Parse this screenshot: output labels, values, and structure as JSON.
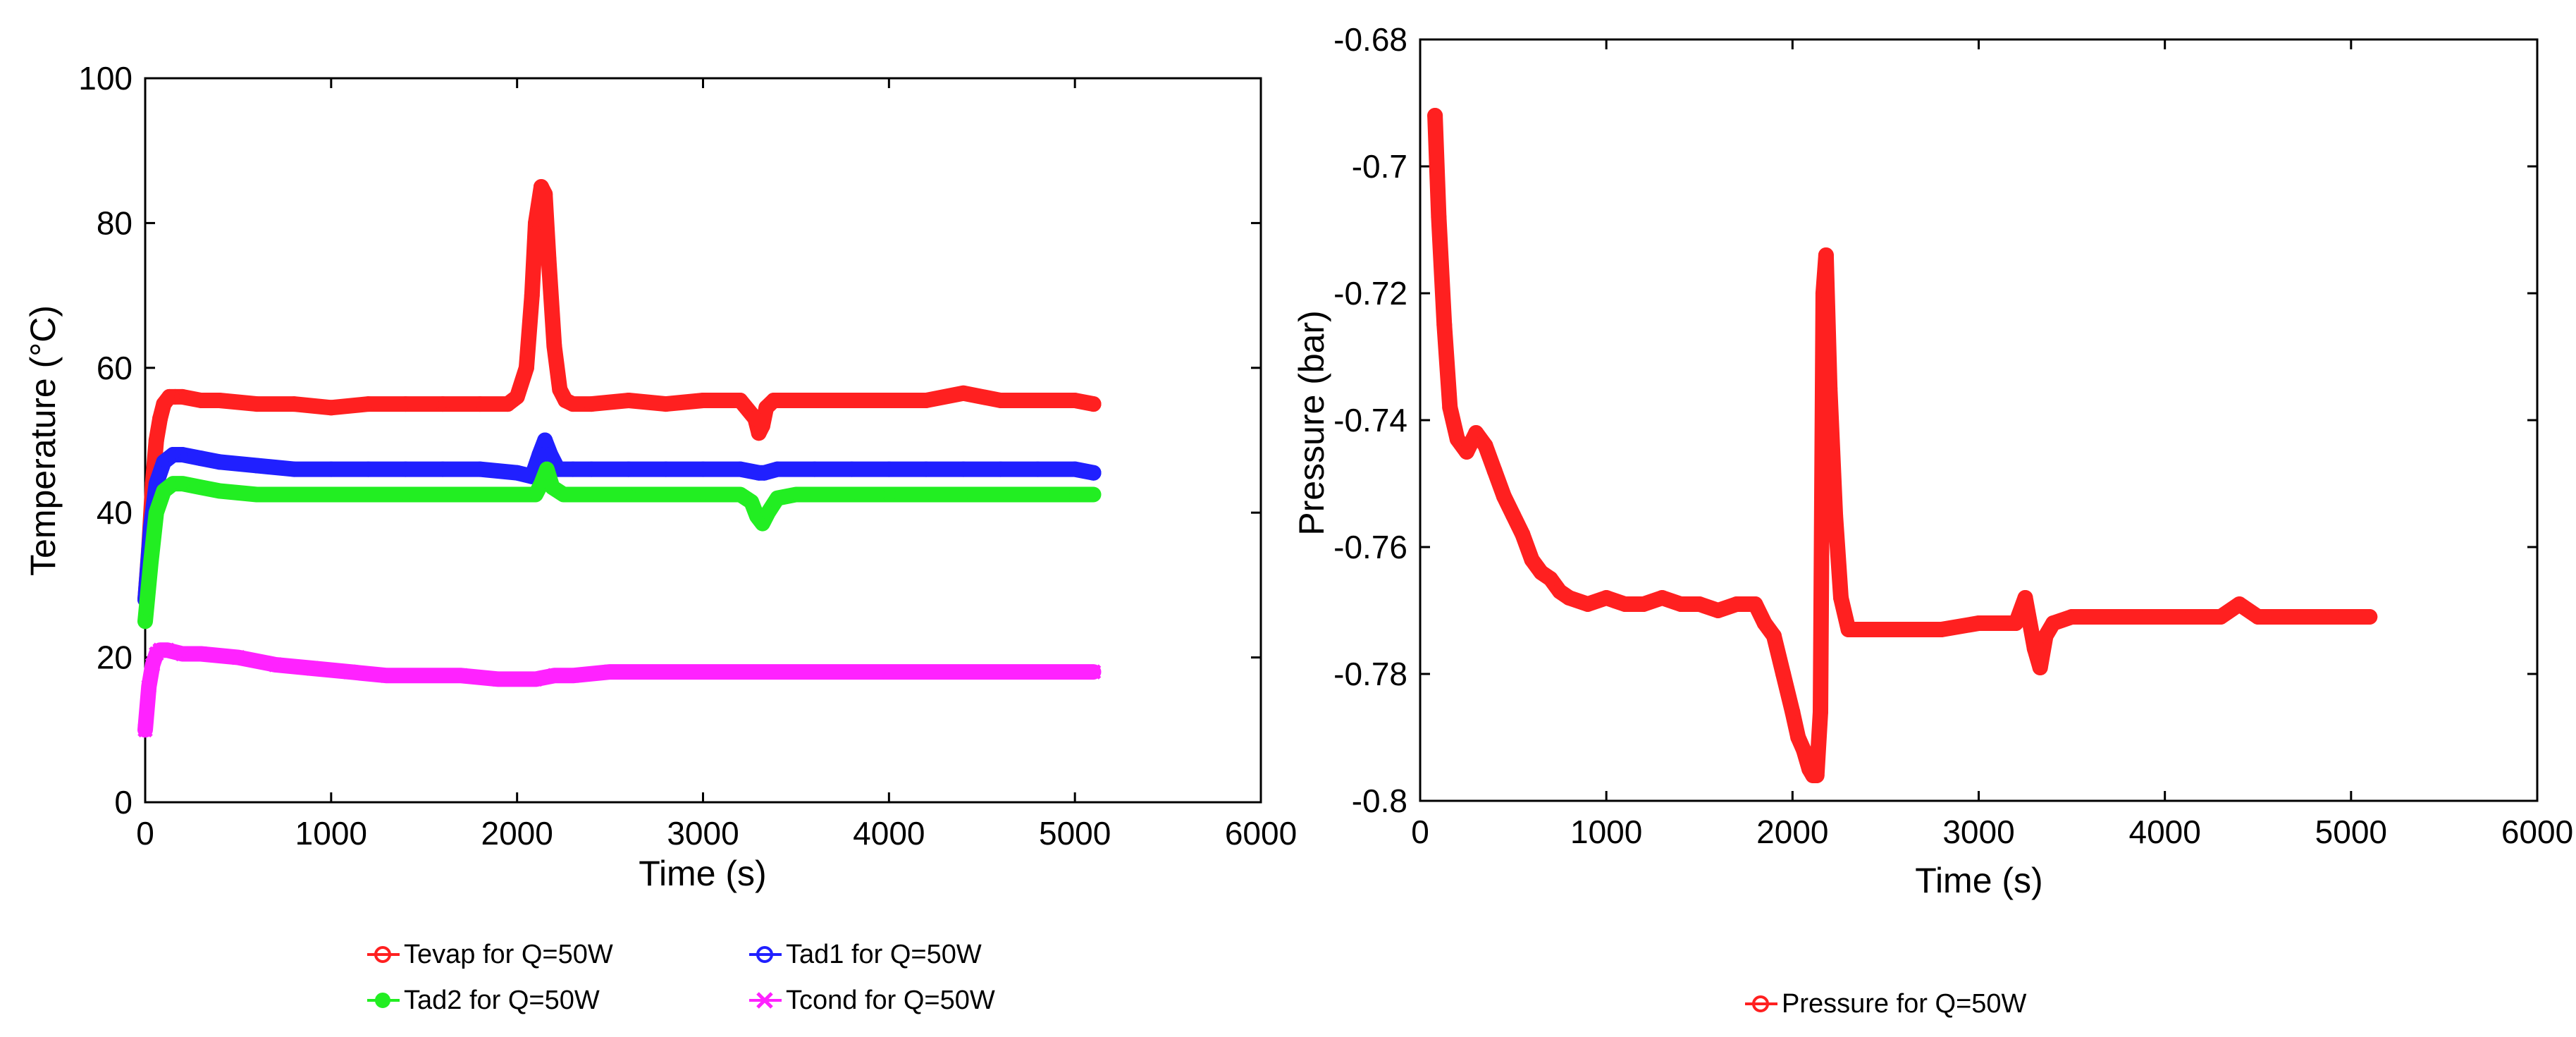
{
  "chart_data": [
    {
      "type": "line",
      "title": "",
      "xlabel": "Time (s)",
      "ylabel": "Temperature (°C)",
      "xlim": [
        0,
        6000
      ],
      "ylim": [
        0,
        100
      ],
      "xticks": [
        "0",
        "1000",
        "2000",
        "3000",
        "4000",
        "5000",
        "6000"
      ],
      "yticks": [
        "0",
        "20",
        "40",
        "60",
        "80",
        "100"
      ],
      "grid": false,
      "legend_position": "bottom",
      "series": [
        {
          "name": "Tevap for Q=50W",
          "color": "#ff2020",
          "marker": "circle",
          "x": [
            0,
            20,
            40,
            60,
            80,
            100,
            130,
            160,
            200,
            300,
            400,
            600,
            800,
            1000,
            1200,
            1400,
            1600,
            1800,
            1950,
            2000,
            2050,
            2080,
            2100,
            2130,
            2150,
            2170,
            2200,
            2230,
            2260,
            2300,
            2400,
            2600,
            2800,
            3000,
            3200,
            3280,
            3300,
            3320,
            3340,
            3380,
            3450,
            3600,
            3800,
            4000,
            4200,
            4400,
            4600,
            4800,
            5000,
            5100
          ],
          "values": [
            28,
            35,
            44,
            50,
            53,
            55,
            56,
            56,
            56,
            55.5,
            55.5,
            55,
            55,
            54.5,
            55,
            55,
            55,
            55,
            55,
            56,
            60,
            70,
            80,
            85,
            84,
            75,
            63,
            57,
            55.5,
            55,
            55,
            55.5,
            55,
            55.5,
            55.5,
            53,
            51,
            52,
            54.5,
            55.5,
            55.5,
            55.5,
            55.5,
            55.5,
            55.5,
            56.5,
            55.5,
            55.5,
            55.5,
            55
          ]
        },
        {
          "name": "Tad1 for Q=50W",
          "color": "#2020ff",
          "marker": "circle",
          "x": [
            0,
            30,
            60,
            100,
            150,
            200,
            300,
            400,
            600,
            800,
            1000,
            1200,
            1400,
            1600,
            1800,
            2000,
            2080,
            2120,
            2150,
            2180,
            2220,
            2300,
            2400,
            2600,
            2800,
            3000,
            3200,
            3300,
            3330,
            3400,
            3600,
            3800,
            4000,
            4200,
            4400,
            4600,
            4800,
            5000,
            5100
          ],
          "values": [
            28,
            38,
            44,
            47,
            48,
            48,
            47.5,
            47,
            46.5,
            46,
            46,
            46,
            46,
            46,
            46,
            45.5,
            45,
            48,
            50,
            48,
            46,
            46,
            46,
            46,
            46,
            46,
            46,
            45.5,
            45.5,
            46,
            46,
            46,
            46,
            46,
            46,
            46,
            46,
            46,
            45.5
          ]
        },
        {
          "name": "Tad2 for Q=50W",
          "color": "#22ee22",
          "marker": "filled-circle",
          "x": [
            0,
            30,
            60,
            100,
            150,
            200,
            300,
            400,
            600,
            800,
            1000,
            1200,
            1400,
            1600,
            1800,
            2000,
            2100,
            2130,
            2160,
            2190,
            2250,
            2400,
            2600,
            2800,
            3000,
            3200,
            3260,
            3290,
            3320,
            3350,
            3400,
            3500,
            3600,
            3800,
            4000,
            4200,
            4400,
            4600,
            4800,
            5000,
            5100
          ],
          "values": [
            25,
            33,
            40,
            43,
            44,
            44,
            43.5,
            43,
            42.5,
            42.5,
            42.5,
            42.5,
            42.5,
            42.5,
            42.5,
            42.5,
            42.5,
            44,
            46,
            43.5,
            42.5,
            42.5,
            42.5,
            42.5,
            42.5,
            42.5,
            41.5,
            39.5,
            38.5,
            40,
            42,
            42.5,
            42.5,
            42.5,
            42.5,
            42.5,
            42.5,
            42.5,
            42.5,
            42.5,
            42.5
          ]
        },
        {
          "name": "Tcond for Q=50W",
          "color": "#ff22ff",
          "marker": "x",
          "x": [
            0,
            20,
            40,
            60,
            80,
            120,
            200,
            300,
            500,
            700,
            900,
            1100,
            1300,
            1500,
            1700,
            1900,
            2000,
            2100,
            2200,
            2300,
            2500,
            2700,
            3000,
            3300,
            3600,
            4000,
            4400,
            4800,
            5100
          ],
          "values": [
            10,
            16,
            19,
            20.5,
            21,
            21,
            20.5,
            20.5,
            20,
            19,
            18.5,
            18,
            17.5,
            17.5,
            17.5,
            17,
            17,
            17,
            17.5,
            17.5,
            18,
            18,
            18,
            18,
            18,
            18,
            18,
            18,
            18
          ]
        }
      ]
    },
    {
      "type": "line",
      "title": "",
      "xlabel": "Time (s)",
      "ylabel": "Pressure (bar)",
      "xlim": [
        0,
        6000
      ],
      "ylim": [
        -0.8,
        -0.68
      ],
      "xticks": [
        "0",
        "1000",
        "2000",
        "3000",
        "4000",
        "5000",
        "6000"
      ],
      "yticks": [
        "-0.8",
        "-0.78",
        "-0.76",
        "-0.74",
        "-0.72",
        "-0.7",
        "-0.68"
      ],
      "grid": false,
      "legend_position": "bottom",
      "series": [
        {
          "name": "Pressure for Q=50W",
          "color": "#ff2020",
          "marker": "circle",
          "x": [
            80,
            100,
            130,
            160,
            200,
            250,
            300,
            350,
            400,
            450,
            500,
            550,
            600,
            650,
            700,
            750,
            800,
            900,
            1000,
            1100,
            1200,
            1300,
            1400,
            1500,
            1600,
            1700,
            1800,
            1850,
            1900,
            1950,
            2000,
            2030,
            2060,
            2090,
            2110,
            2130,
            2150,
            2165,
            2180,
            2200,
            2230,
            2260,
            2300,
            2400,
            2600,
            2800,
            3000,
            3200,
            3250,
            3300,
            3330,
            3360,
            3400,
            3500,
            3700,
            3900,
            4100,
            4300,
            4400,
            4500,
            4700,
            4900,
            5100
          ],
          "values": [
            -0.692,
            -0.708,
            -0.725,
            -0.738,
            -0.743,
            -0.745,
            -0.742,
            -0.744,
            -0.748,
            -0.752,
            -0.755,
            -0.758,
            -0.762,
            -0.764,
            -0.765,
            -0.767,
            -0.768,
            -0.769,
            -0.768,
            -0.769,
            -0.769,
            -0.768,
            -0.769,
            -0.769,
            -0.77,
            -0.769,
            -0.769,
            -0.772,
            -0.774,
            -0.78,
            -0.786,
            -0.79,
            -0.792,
            -0.795,
            -0.796,
            -0.796,
            -0.786,
            -0.72,
            -0.714,
            -0.735,
            -0.755,
            -0.768,
            -0.773,
            -0.773,
            -0.773,
            -0.773,
            -0.772,
            -0.772,
            -0.768,
            -0.776,
            -0.779,
            -0.774,
            -0.772,
            -0.771,
            -0.771,
            -0.771,
            -0.771,
            -0.771,
            -0.769,
            -0.771,
            -0.771,
            -0.771,
            -0.771
          ]
        }
      ]
    }
  ]
}
